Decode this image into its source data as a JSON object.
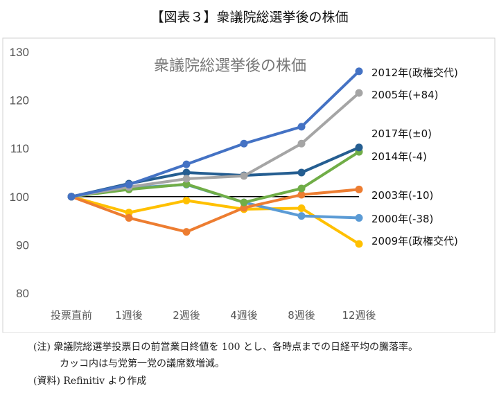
{
  "header": {
    "title": "【図表３】衆議院総選挙後の株価"
  },
  "chart_data": {
    "type": "line",
    "title": "衆議院総選挙後の株価",
    "categories": [
      "投票直前",
      "1週後",
      "2週後",
      "4週後",
      "8週後",
      "12週後"
    ],
    "ylim": [
      80,
      130
    ],
    "yticks": [
      80,
      90,
      100,
      110,
      120,
      130
    ],
    "reference_line": 100,
    "grid": false,
    "legend_placement": "right, labels at line ends",
    "series": [
      {
        "name": "2012年(政権交代)",
        "color": "#4472C4",
        "values": [
          100,
          102.5,
          106.7,
          111.0,
          114.5,
          126.0
        ]
      },
      {
        "name": "2005年(+84)",
        "color": "#A5A5A5",
        "values": [
          100,
          102.0,
          103.7,
          104.3,
          111.0,
          121.5
        ]
      },
      {
        "name": "2017年(±0)",
        "color": "#255E91",
        "values": [
          100,
          102.7,
          105.0,
          104.4,
          105.0,
          110.2
        ]
      },
      {
        "name": "2014年(-4)",
        "color": "#70AD47",
        "values": [
          100,
          101.5,
          102.6,
          98.8,
          101.7,
          109.3
        ]
      },
      {
        "name": "2003年(-10)",
        "color": "#ED7D31",
        "values": [
          100,
          95.6,
          92.7,
          97.7,
          100.4,
          101.5
        ]
      },
      {
        "name": "2000年(-38)",
        "color": "#5B9BD5",
        "values": [
          100,
          101.8,
          102.5,
          98.8,
          96.0,
          95.6
        ]
      },
      {
        "name": "2009年(政権交代)",
        "color": "#FFC000",
        "values": [
          100,
          96.7,
          99.2,
          97.4,
          97.6,
          90.2
        ]
      }
    ]
  },
  "notes": {
    "line1": "(注) 衆議院総選挙投票日の前営業日終値を 100 とし、各時点までの日経平均の騰落率。",
    "line2": "カッコ内は与党第一党の議席数増減。",
    "line3": "(資料)  Refinitiv より作成"
  }
}
